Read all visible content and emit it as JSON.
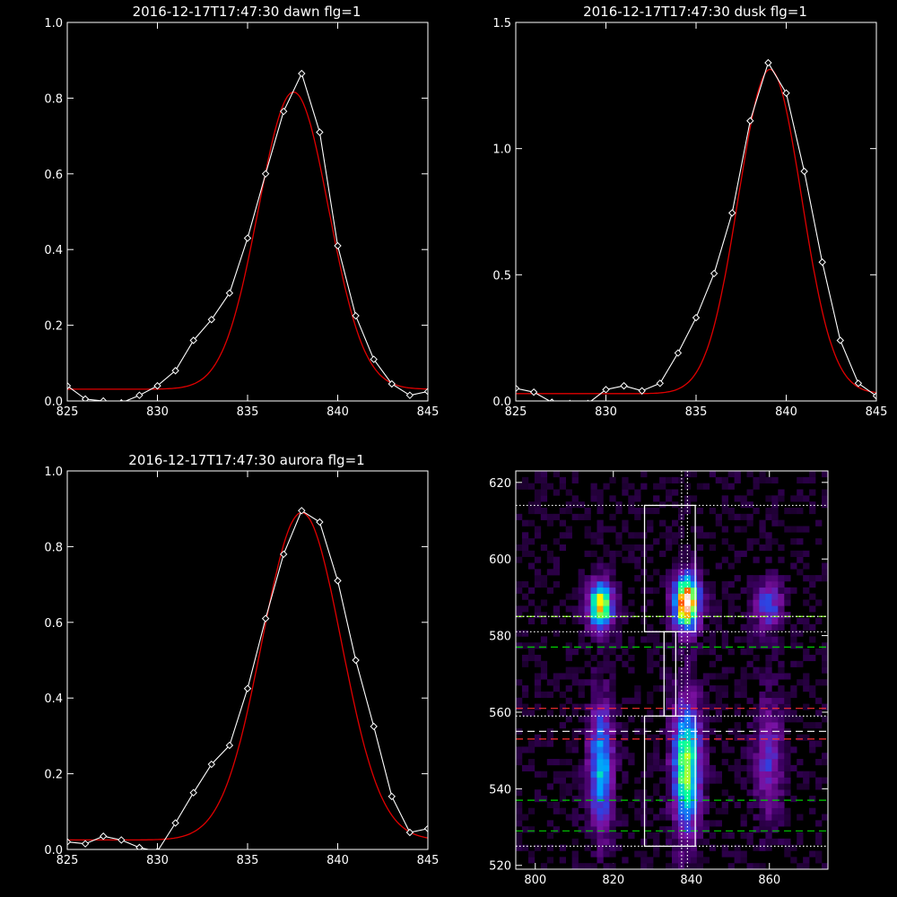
{
  "charts": {
    "dawn": {
      "title": "2016-12-17T17:47:30 dawn flg=1",
      "xlim": [
        825,
        845
      ],
      "ylim": [
        0,
        1.0
      ],
      "xticks": [
        "825",
        "830",
        "835",
        "840",
        "845"
      ],
      "yticks": [
        "0.0",
        "0.2",
        "0.4",
        "0.6",
        "0.8",
        "1.0"
      ]
    },
    "dusk": {
      "title": "2016-12-17T17:47:30 dusk flg=1",
      "xlim": [
        825,
        845
      ],
      "ylim": [
        0,
        1.5
      ],
      "xticks": [
        "825",
        "830",
        "835",
        "840",
        "845"
      ],
      "yticks": [
        "0.0",
        "0.5",
        "1.0",
        "1.5"
      ]
    },
    "aurora": {
      "title": "2016-12-17T17:47:30 aurora flg=1",
      "xlim": [
        825,
        845
      ],
      "ylim": [
        0,
        1.0
      ],
      "xticks": [
        "825",
        "830",
        "835",
        "840",
        "845"
      ],
      "yticks": [
        "0.0",
        "0.2",
        "0.4",
        "0.6",
        "0.8",
        "1.0"
      ]
    },
    "image": {
      "xlim": [
        795,
        875
      ],
      "ylim": [
        519,
        623
      ],
      "xticks": [
        "800",
        "820",
        "840",
        "860"
      ],
      "yticks": [
        "520",
        "540",
        "560",
        "580",
        "600",
        "620"
      ]
    }
  },
  "chart_data": [
    {
      "type": "line",
      "title": "2016-12-17T17:47:30 dawn flg=1",
      "xlim": [
        825,
        845
      ],
      "ylim": [
        0,
        1.0
      ],
      "grid": false,
      "series": [
        {
          "color": "#ffffff",
          "marker": "diamond",
          "x": [
            825,
            826,
            827,
            828,
            829,
            830,
            831,
            832,
            833,
            834,
            835,
            836,
            837,
            838,
            839,
            840,
            841,
            842,
            843,
            844,
            845
          ],
          "y": [
            0.04,
            0.005,
            0.0,
            -0.005,
            0.015,
            0.04,
            0.08,
            0.16,
            0.215,
            0.285,
            0.43,
            0.6,
            0.765,
            0.865,
            0.71,
            0.41,
            0.225,
            0.11,
            0.045,
            0.015,
            0.025
          ]
        },
        {
          "color": "#e00000",
          "gaussian": {
            "amplitude": 0.785,
            "center": 837.55,
            "sigma": 1.95,
            "offset": 0.031
          }
        }
      ]
    },
    {
      "type": "line",
      "title": "2016-12-17T17:47:30 dusk flg=1",
      "xlim": [
        825,
        845
      ],
      "ylim": [
        0,
        1.5
      ],
      "grid": false,
      "series": [
        {
          "color": "#ffffff",
          "marker": "diamond",
          "x": [
            825,
            826,
            827,
            828,
            829,
            830,
            831,
            832,
            833,
            834,
            835,
            836,
            837,
            838,
            839,
            840,
            841,
            842,
            843,
            844,
            845
          ],
          "y": [
            0.05,
            0.035,
            -0.005,
            -0.01,
            -0.01,
            0.045,
            0.06,
            0.04,
            0.07,
            0.19,
            0.33,
            0.505,
            0.745,
            1.11,
            1.34,
            1.22,
            0.91,
            0.55,
            0.24,
            0.07,
            0.02
          ]
        },
        {
          "color": "#e00000",
          "gaussian": {
            "amplitude": 1.285,
            "center": 839.1,
            "sigma": 1.75,
            "offset": 0.029
          }
        }
      ]
    },
    {
      "type": "line",
      "title": "2016-12-17T17:47:30 aurora flg=1",
      "xlim": [
        825,
        845
      ],
      "ylim": [
        0,
        1.0
      ],
      "grid": false,
      "series": [
        {
          "color": "#ffffff",
          "marker": "diamond",
          "x": [
            825,
            826,
            827,
            828,
            829,
            830,
            831,
            832,
            833,
            834,
            835,
            836,
            837,
            838,
            839,
            840,
            841,
            842,
            843,
            844,
            845
          ],
          "y": [
            0.02,
            0.015,
            0.035,
            0.025,
            0.005,
            -0.005,
            0.07,
            0.15,
            0.225,
            0.275,
            0.425,
            0.61,
            0.78,
            0.895,
            0.865,
            0.71,
            0.5,
            0.325,
            0.14,
            0.045,
            0.055
          ]
        },
        {
          "color": "#e00000",
          "gaussian": {
            "amplitude": 0.865,
            "center": 838.0,
            "sigma": 2.2,
            "offset": 0.025
          }
        }
      ]
    },
    {
      "type": "heatmap",
      "xlim": [
        795,
        875
      ],
      "ylim": [
        519,
        623
      ],
      "grid": false,
      "colormap": [
        "#000000",
        "#3a0060",
        "#7a10a0",
        "#3040e0",
        "#00a0ff",
        "#00ffa0",
        "#ffff00",
        "#ff4000",
        "#ffffff"
      ],
      "blobs": [
        {
          "x": 816,
          "y": 587,
          "sx": 2.2,
          "sy": 4.5,
          "peak": 0.78
        },
        {
          "x": 838,
          "y": 588,
          "sx": 2.4,
          "sy": 5,
          "peak": 0.95
        },
        {
          "x": 859,
          "y": 587,
          "sx": 2.5,
          "sy": 4.5,
          "peak": 0.35
        },
        {
          "x": 816,
          "y": 545,
          "sx": 2.2,
          "sy": 12,
          "peak": 0.5
        },
        {
          "x": 838,
          "y": 545,
          "sx": 2.5,
          "sy": 12,
          "peak": 0.7
        },
        {
          "x": 859,
          "y": 547,
          "sx": 2.5,
          "sy": 11,
          "peak": 0.28
        }
      ],
      "overlays": [
        {
          "kind": "hline",
          "y": 614,
          "color": "#ffffff",
          "dash": "dotted"
        },
        {
          "kind": "hline",
          "y": 585,
          "color": "#7CFC00",
          "dash": "dashed"
        },
        {
          "kind": "hline",
          "y": 585,
          "color": "#ffffff",
          "dash": "dotted"
        },
        {
          "kind": "hline",
          "y": 581,
          "color": "#ffffff",
          "dash": "dotted"
        },
        {
          "kind": "hline",
          "y": 577,
          "color": "#00d000",
          "dash": "dashed"
        },
        {
          "kind": "hline",
          "y": 561,
          "color": "#ff3030",
          "dash": "dashed"
        },
        {
          "kind": "hline",
          "y": 559,
          "color": "#ffffff",
          "dash": "dotted"
        },
        {
          "kind": "hline",
          "y": 555,
          "color": "#ffffff",
          "dash": "dashed"
        },
        {
          "kind": "hline",
          "y": 553,
          "color": "#ff3030",
          "dash": "dashed"
        },
        {
          "kind": "hline",
          "y": 537,
          "color": "#00d000",
          "dash": "dashed"
        },
        {
          "kind": "hline",
          "y": 529,
          "color": "#00d000",
          "dash": "dashed"
        },
        {
          "kind": "hline",
          "y": 525,
          "color": "#ffffff",
          "dash": "dotted"
        },
        {
          "kind": "vline",
          "x": 837.5,
          "color": "#ffffff",
          "dash": "dotted"
        },
        {
          "kind": "vline",
          "x": 839,
          "color": "#ffffff",
          "dash": "dotted"
        }
      ],
      "boxes": [
        {
          "x0": 828,
          "x1": 841,
          "y0": 581,
          "y1": 614
        },
        {
          "x0": 828,
          "x1": 841,
          "y0": 525,
          "y1": 559
        },
        {
          "x0": 833,
          "x1": 836,
          "y0": 559,
          "y1": 581
        }
      ]
    }
  ]
}
